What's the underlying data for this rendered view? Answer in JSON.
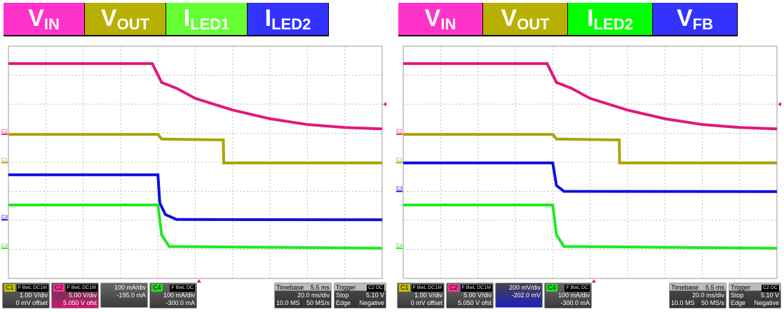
{
  "panels": [
    {
      "legend": [
        {
          "main": "V",
          "sub": "IN",
          "color": "#ff33cc"
        },
        {
          "main": "V",
          "sub": "OUT",
          "color": "#b8b000"
        },
        {
          "main": "I",
          "sub": "LED1",
          "color": "#66ff33"
        },
        {
          "main": "I",
          "sub": "LED2",
          "color": "#3333ff"
        }
      ],
      "channels": [
        {
          "tag": "C1",
          "tag_color": "#c8c000",
          "flags": [
            "F",
            "BwL",
            "DC1M"
          ],
          "scale": "1.00 V/div",
          "offset": "0 mV offset",
          "style": ""
        },
        {
          "tag": "C2",
          "tag_color": "#ff3399",
          "flags": [
            "F",
            "BwL",
            "DC1M"
          ],
          "scale": "5.00 V/div",
          "offset": "5.050 V ofst",
          "style": "sel"
        },
        {
          "tag": "",
          "tag_color": "#2020ff",
          "flags": [
            "",
            "",
            ""
          ],
          "scale": "100 mA/div",
          "offset": "-195.0 mA",
          "style": ""
        },
        {
          "tag": "C4",
          "tag_color": "#22dd22",
          "flags": [
            "F",
            "BwL",
            "DC"
          ],
          "scale": "100 mA/div",
          "offset": "-300.0 mA",
          "style": ""
        }
      ],
      "timebase": {
        "label": "Timebase",
        "delay": "5.5 ms",
        "scale": "20.0 ms/div",
        "memory": "10.0 MS",
        "rate": "50 MS/s"
      },
      "trigger": {
        "label": "Trigger",
        "flags": "C2 DC",
        "mode": "Stop",
        "level": "5.10 V",
        "type": "Edge",
        "slope": "Negative"
      }
    },
    {
      "legend": [
        {
          "main": "V",
          "sub": "IN",
          "color": "#ff33cc"
        },
        {
          "main": "V",
          "sub": "OUT",
          "color": "#b8b000"
        },
        {
          "main": "I",
          "sub": "LED2",
          "color": "#00ff00"
        },
        {
          "main": "V",
          "sub": "FB",
          "color": "#3333ff"
        }
      ],
      "channels": [
        {
          "tag": "C1",
          "tag_color": "#c8c000",
          "flags": [
            "F",
            "BwL",
            "DC1M"
          ],
          "scale": "1.00 V/div",
          "offset": "0 mV offset",
          "style": ""
        },
        {
          "tag": "C2",
          "tag_color": "#ff3399",
          "flags": [
            "F",
            "BwL",
            "DC1M"
          ],
          "scale": "5.00 V/div",
          "offset": "5.050 V ofst",
          "style": ""
        },
        {
          "tag": "",
          "tag_color": "#2020ff",
          "flags": [
            "",
            "",
            ""
          ],
          "scale": "200 mV/div",
          "offset": "-202.0 mV",
          "style": "selb"
        },
        {
          "tag": "C4",
          "tag_color": "#22dd22",
          "flags": [
            "F",
            "BwL",
            "DC"
          ],
          "scale": "100 mA/div",
          "offset": "-300.0 mA",
          "style": ""
        }
      ],
      "timebase": {
        "label": "Timebase",
        "delay": "5.5 ms",
        "scale": "20.0 ms/div",
        "memory": "10.0 MS",
        "rate": "50 MS/s"
      },
      "trigger": {
        "label": "Trigger",
        "flags": "C2 DC",
        "mode": "Stop",
        "level": "5.10 V",
        "type": "Edge",
        "slope": "Negative"
      }
    }
  ],
  "chart_data": [
    {
      "type": "line",
      "x_divisions": 10,
      "y_divisions": 8,
      "grid": true,
      "series": [
        {
          "name": "VIN",
          "color": "#e0197a",
          "ground_marker": "C2",
          "x": [
            0,
            3.85,
            4.1,
            4.5,
            5,
            6,
            7,
            8,
            9,
            10
          ],
          "y": [
            7.4,
            7.4,
            6.75,
            6.55,
            6.2,
            5.8,
            5.5,
            5.3,
            5.2,
            5.15
          ]
        },
        {
          "name": "VOUT",
          "color": "#aca300",
          "ground_marker": "C1",
          "x": [
            0,
            4.0,
            4.1,
            5.75,
            5.76,
            10
          ],
          "y": [
            4.96,
            4.96,
            4.8,
            4.77,
            3.98,
            3.98
          ]
        },
        {
          "name": "ILED2",
          "color": "#1010e0",
          "ground_marker": "C3",
          "x": [
            0,
            4.0,
            4.05,
            4.2,
            4.5,
            10
          ],
          "y": [
            3.57,
            3.57,
            2.6,
            2.2,
            2.03,
            2.02
          ]
        },
        {
          "name": "ILED1",
          "color": "#22e822",
          "ground_marker": "C4",
          "x": [
            0,
            4.0,
            4.1,
            4.3,
            10
          ],
          "y": [
            2.53,
            2.53,
            1.5,
            1.1,
            1.04
          ]
        }
      ]
    },
    {
      "type": "line",
      "x_divisions": 10,
      "y_divisions": 8,
      "grid": true,
      "series": [
        {
          "name": "VIN",
          "color": "#e0197a",
          "ground_marker": "C2",
          "x": [
            0,
            3.85,
            4.1,
            4.5,
            5,
            6,
            7,
            8,
            9,
            10
          ],
          "y": [
            7.4,
            7.4,
            6.75,
            6.55,
            6.2,
            5.8,
            5.5,
            5.3,
            5.2,
            5.15
          ]
        },
        {
          "name": "VOUT",
          "color": "#aca300",
          "ground_marker": "C1",
          "x": [
            0,
            4.0,
            4.1,
            5.78,
            5.79,
            10
          ],
          "y": [
            4.96,
            4.96,
            4.8,
            4.77,
            3.98,
            3.98
          ]
        },
        {
          "name": "VFB",
          "color": "#1010e0",
          "ground_marker": "C3",
          "x": [
            0,
            4.0,
            4.1,
            4.3,
            10
          ],
          "y": [
            3.98,
            3.98,
            3.2,
            3.0,
            2.99
          ]
        },
        {
          "name": "ILED2",
          "color": "#22e822",
          "ground_marker": "C4",
          "x": [
            0,
            4.0,
            4.1,
            4.3,
            10
          ],
          "y": [
            2.53,
            2.53,
            1.5,
            1.1,
            1.04
          ]
        }
      ]
    }
  ]
}
